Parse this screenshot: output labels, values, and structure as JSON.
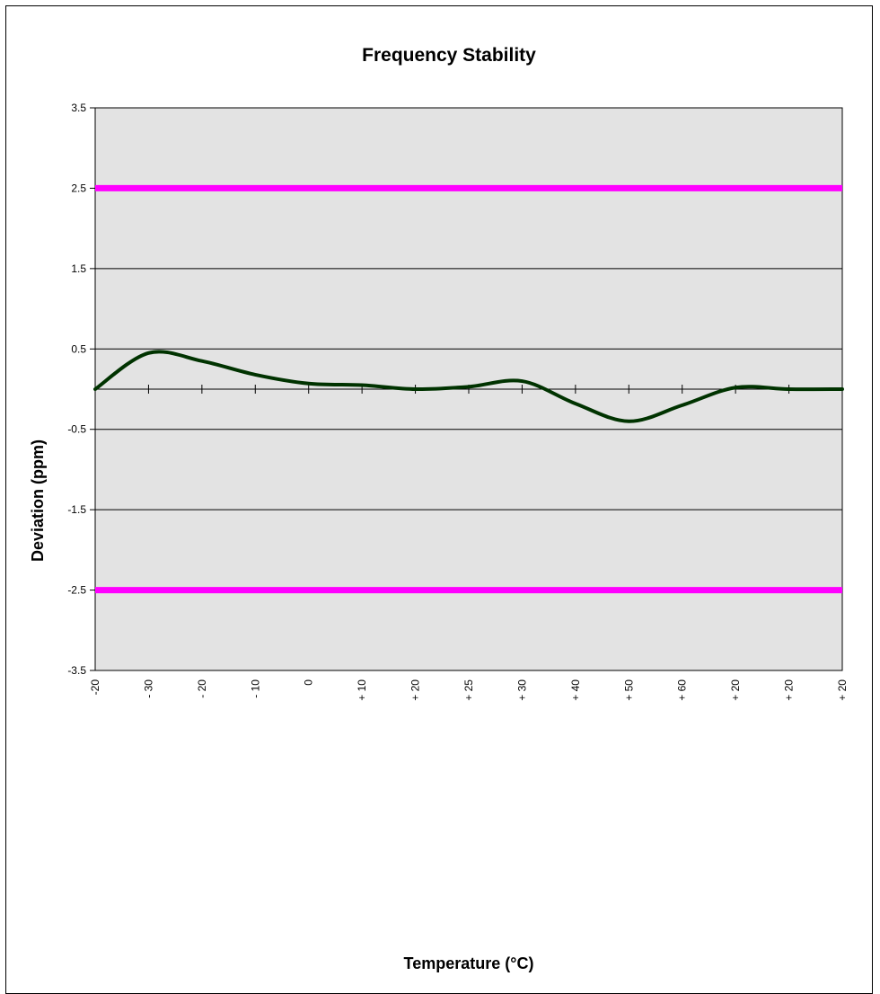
{
  "chart_data": {
    "type": "line",
    "title": "Frequency Stability",
    "xlabel": "Temperature (°C)",
    "ylabel": "Deviation (ppm)",
    "ylim": [
      -3.5,
      3.5
    ],
    "yticks": [
      "3.5",
      "2.5",
      "1.5",
      "0.5",
      "-0.5",
      "-1.5",
      "-2.5",
      "-3.5"
    ],
    "ytick_values": [
      3.5,
      2.5,
      1.5,
      0.5,
      -0.5,
      -1.5,
      -2.5,
      -3.5
    ],
    "categories": [
      "-20",
      "- 30",
      "- 20",
      "- 10",
      "0",
      "+ 10",
      "+ 20",
      "+ 25",
      "+ 30",
      "+ 40",
      "+ 50",
      "+ 60",
      "+ 20",
      "+ 20",
      "+ 20"
    ],
    "series": [
      {
        "values": [
          0.0,
          0.45,
          0.35,
          0.18,
          0.07,
          0.05,
          0.0,
          0.03,
          0.1,
          -0.18,
          -0.4,
          -0.2,
          0.02,
          0.0,
          0.0
        ],
        "color": "#003300"
      },
      {
        "values": [
          2.5,
          2.5,
          2.5,
          2.5,
          2.5,
          2.5,
          2.5,
          2.5,
          2.5,
          2.5,
          2.5,
          2.5,
          2.5,
          2.5,
          2.5
        ],
        "color": "#ff00ff"
      },
      {
        "values": [
          -2.5,
          -2.5,
          -2.5,
          -2.5,
          -2.5,
          -2.5,
          -2.5,
          -2.5,
          -2.5,
          -2.5,
          -2.5,
          -2.5,
          -2.5,
          -2.5,
          -2.5
        ],
        "color": "#ff00ff"
      }
    ],
    "grid": true,
    "plot_background": "#e3e3e3",
    "legend": "none"
  }
}
